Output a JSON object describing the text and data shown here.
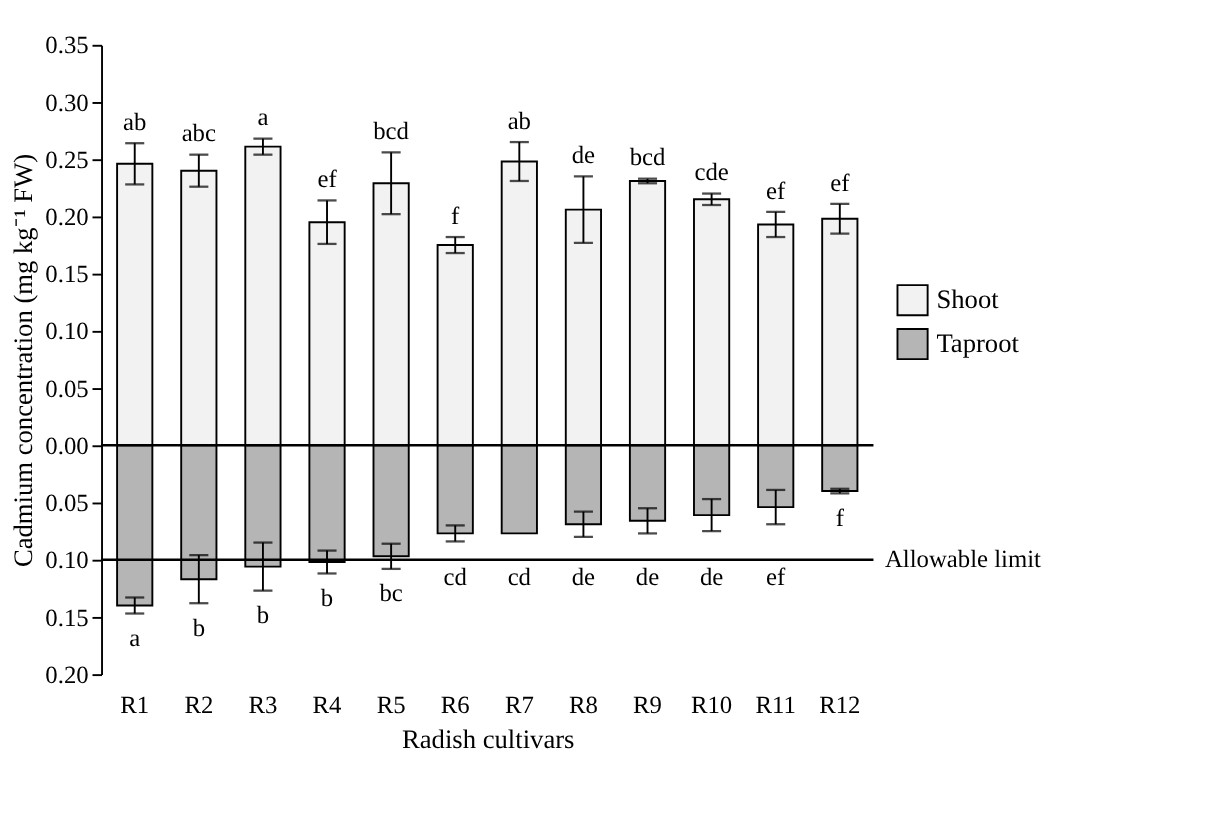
{
  "chart_data": {
    "type": "bar",
    "stacked": true,
    "xlabel": "Radish cultivars",
    "ylabel": "Cadmium concentration (mg kg⁻¹ FW)",
    "categories": [
      "R1",
      "R2",
      "R3",
      "R4",
      "R5",
      "R6",
      "R7",
      "R8",
      "R9",
      "R10",
      "R11",
      "R12"
    ],
    "series": [
      {
        "name": "Shoot",
        "color": "#f2f2f2",
        "values": [
          0.246,
          0.24,
          0.261,
          0.195,
          0.229,
          0.175,
          0.248,
          0.206,
          0.231,
          0.215,
          0.193,
          0.198
        ],
        "errors": [
          0.018,
          0.014,
          0.007,
          0.019,
          0.027,
          0.007,
          0.017,
          0.029,
          0.002,
          0.005,
          0.011,
          0.013
        ]
      },
      {
        "name": "Taproot",
        "color": "#b5b5b5",
        "values": [
          -0.14,
          -0.117,
          -0.106,
          -0.102,
          -0.097,
          -0.077,
          -0.077,
          -0.069,
          -0.066,
          -0.061,
          -0.054,
          -0.04
        ],
        "errors": [
          0.007,
          0.021,
          0.021,
          0.01,
          0.011,
          0.007,
          null,
          0.011,
          0.011,
          0.014,
          0.015,
          0.002
        ]
      }
    ],
    "ylim": [
      -0.2,
      0.35
    ],
    "yticks": [
      {
        "value": -0.2,
        "label": "0.20"
      },
      {
        "value": -0.15,
        "label": "0.15"
      },
      {
        "value": -0.1,
        "label": "0.10"
      },
      {
        "value": -0.05,
        "label": "0.05"
      },
      {
        "value": 0,
        "label": "0.00"
      },
      {
        "value": 0.05,
        "label": "0.05"
      },
      {
        "value": 0.1,
        "label": "0.10"
      },
      {
        "value": 0.15,
        "label": "0.15"
      },
      {
        "value": 0.2,
        "label": "0.20"
      },
      {
        "value": 0.25,
        "label": "0.25"
      },
      {
        "value": 0.3,
        "label": "0.30"
      },
      {
        "value": 0.35,
        "label": "0.35"
      }
    ],
    "ref_lines": [
      {
        "axis": "y",
        "value": 0,
        "label": null
      },
      {
        "axis": "y",
        "value": -0.1,
        "label": "Allowable limit"
      }
    ],
    "legend": "right",
    "grid": false,
    "annotations": [
      "ab",
      "abc",
      "a",
      "ef",
      "bcd",
      "f",
      "ab",
      "de",
      "bcd",
      "cde",
      "ef",
      "ef",
      "a",
      "b",
      "b",
      "b",
      "bc",
      "cd",
      "cd",
      "de",
      "de",
      "de",
      "ef",
      "f"
    ]
  }
}
